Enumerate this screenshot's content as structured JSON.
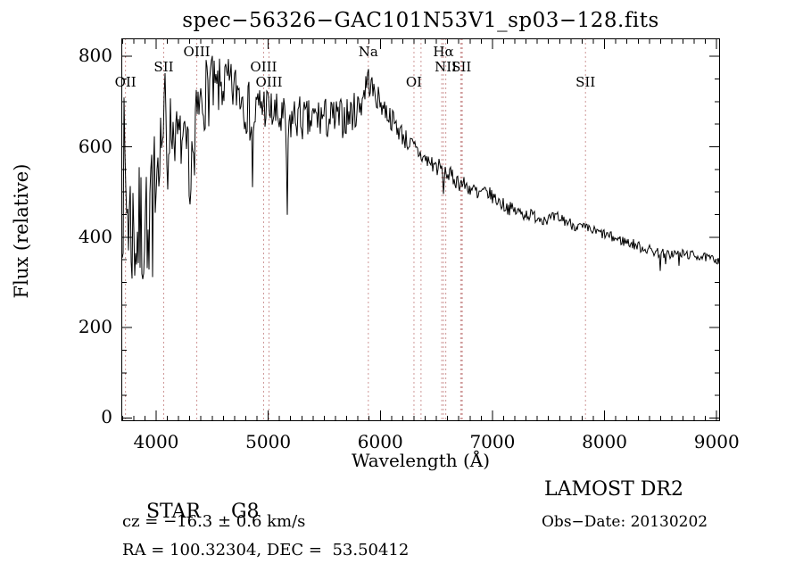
{
  "title": "spec−56326−GAC101N53V1_sp03−128.fits",
  "colors": {
    "background": "#ffffff",
    "spectrum_line": "#000000",
    "frame": "#000000",
    "marker_line": "#9e2f2f",
    "text": "#000000"
  },
  "footer": {
    "class_label": "STAR",
    "subclass": "G8",
    "cz_line": "cz = −16.3 ± 0.6 km/s",
    "radec_line": "RA = 100.32304, DEC =  53.50412",
    "survey": "LAMOST DR2",
    "obsdate_line": "Obs−Date: 20130202"
  },
  "chart_data": {
    "type": "line",
    "title": "spec−56326−GAC101N53V1_sp03−128.fits",
    "xlabel": "Wavelength (Å)",
    "ylabel": "Flux (relative)",
    "xlim": [
      3690,
      9030
    ],
    "ylim": [
      0,
      840
    ],
    "x_ticks": [
      4000,
      5000,
      6000,
      7000,
      8000,
      9000
    ],
    "x_minor_step": 100,
    "y_ticks": [
      0,
      200,
      400,
      600,
      800
    ],
    "y_minor_step": 50,
    "grid": false,
    "legend": null,
    "spectral_line_markers": [
      {
        "label": "OII",
        "wavelength": 3727,
        "row": 3
      },
      {
        "label": "SII",
        "wavelength": 4068,
        "row": 2
      },
      {
        "label": "OIII",
        "wavelength": 4363,
        "row": 1
      },
      {
        "label": "OIII",
        "wavelength": 4959,
        "row": 2
      },
      {
        "label": "OIII",
        "wavelength": 5007,
        "row": 3
      },
      {
        "label": "Na",
        "wavelength": 5893,
        "row": 1
      },
      {
        "label": "OI",
        "wavelength": 6300,
        "row": 3
      },
      {
        "label": "Hα",
        "wavelength": 6563,
        "row": 1
      },
      {
        "label": "NII",
        "wavelength": 6584,
        "row": 2
      },
      {
        "label": "SII",
        "wavelength": 6724,
        "row": 2
      },
      {
        "label": "SII",
        "wavelength": 7830,
        "row": 3
      }
    ],
    "unlabeled_markers": [
      6363,
      6548,
      6717,
      6731
    ],
    "series_name": "Flux (relative)",
    "profile_points": [
      [
        3690,
        560,
        200
      ],
      [
        3730,
        500,
        190
      ],
      [
        3780,
        420,
        160
      ],
      [
        3830,
        400,
        150
      ],
      [
        3880,
        420,
        160
      ],
      [
        3930,
        470,
        150
      ],
      [
        3980,
        540,
        120
      ],
      [
        4030,
        610,
        90
      ],
      [
        4080,
        640,
        90
      ],
      [
        4130,
        645,
        75
      ],
      [
        4180,
        625,
        65
      ],
      [
        4230,
        610,
        65
      ],
      [
        4280,
        575,
        75
      ],
      [
        4330,
        620,
        75
      ],
      [
        4380,
        680,
        75
      ],
      [
        4430,
        715,
        80
      ],
      [
        4480,
        730,
        85
      ],
      [
        4530,
        720,
        65
      ],
      [
        4580,
        735,
        65
      ],
      [
        4630,
        740,
        60
      ],
      [
        4680,
        725,
        60
      ],
      [
        4730,
        730,
        60
      ],
      [
        4780,
        710,
        65
      ],
      [
        4830,
        675,
        70
      ],
      [
        4880,
        670,
        60
      ],
      [
        4930,
        695,
        55
      ],
      [
        4980,
        690,
        55
      ],
      [
        5030,
        675,
        50
      ],
      [
        5080,
        665,
        55
      ],
      [
        5130,
        655,
        55
      ],
      [
        5180,
        650,
        55
      ],
      [
        5230,
        665,
        50
      ],
      [
        5280,
        665,
        50
      ],
      [
        5330,
        655,
        50
      ],
      [
        5380,
        655,
        50
      ],
      [
        5430,
        665,
        50
      ],
      [
        5480,
        665,
        50
      ],
      [
        5530,
        660,
        48
      ],
      [
        5580,
        660,
        48
      ],
      [
        5630,
        662,
        45
      ],
      [
        5680,
        665,
        45
      ],
      [
        5730,
        672,
        45
      ],
      [
        5780,
        680,
        42
      ],
      [
        5830,
        700,
        40
      ],
      [
        5880,
        745,
        35
      ],
      [
        5910,
        740,
        32
      ],
      [
        5950,
        715,
        28
      ],
      [
        6000,
        700,
        28
      ],
      [
        6080,
        668,
        26
      ],
      [
        6160,
        640,
        26
      ],
      [
        6240,
        612,
        24
      ],
      [
        6320,
        592,
        22
      ],
      [
        6400,
        572,
        22
      ],
      [
        6480,
        560,
        22
      ],
      [
        6560,
        548,
        22
      ],
      [
        6640,
        532,
        20
      ],
      [
        6720,
        520,
        20
      ],
      [
        6800,
        508,
        18
      ],
      [
        6880,
        498,
        18
      ],
      [
        6960,
        498,
        16
      ],
      [
        7040,
        482,
        16
      ],
      [
        7120,
        468,
        16
      ],
      [
        7200,
        458,
        15
      ],
      [
        7280,
        452,
        15
      ],
      [
        7360,
        448,
        14
      ],
      [
        7440,
        442,
        14
      ],
      [
        7520,
        440,
        14
      ],
      [
        7600,
        444,
        14
      ],
      [
        7680,
        432,
        13
      ],
      [
        7760,
        424,
        13
      ],
      [
        7840,
        418,
        12
      ],
      [
        7920,
        412,
        12
      ],
      [
        8000,
        406,
        12
      ],
      [
        8080,
        398,
        12
      ],
      [
        8160,
        392,
        12
      ],
      [
        8240,
        386,
        12
      ],
      [
        8320,
        378,
        12
      ],
      [
        8400,
        372,
        12
      ],
      [
        8480,
        366,
        12
      ],
      [
        8560,
        362,
        11
      ],
      [
        8640,
        364,
        11
      ],
      [
        8720,
        362,
        11
      ],
      [
        8800,
        360,
        10
      ],
      [
        8880,
        356,
        10
      ],
      [
        8960,
        352,
        9
      ],
      [
        9030,
        348,
        9
      ]
    ],
    "absorption_dips": [
      [
        3934,
        280,
        12
      ],
      [
        3969,
        300,
        10
      ],
      [
        4102,
        480,
        10
      ],
      [
        4300,
        430,
        14
      ],
      [
        4340,
        500,
        10
      ],
      [
        4861,
        490,
        10
      ],
      [
        5170,
        445,
        12
      ],
      [
        6563,
        495,
        8
      ],
      [
        6869,
        478,
        10
      ],
      [
        7594,
        425,
        8
      ],
      [
        8498,
        318,
        6
      ],
      [
        8542,
        316,
        6
      ],
      [
        8662,
        322,
        6
      ]
    ],
    "emission_spikes": [
      [
        4078,
        805,
        6
      ],
      [
        4490,
        843,
        6
      ],
      [
        5892,
        775,
        8
      ]
    ]
  }
}
